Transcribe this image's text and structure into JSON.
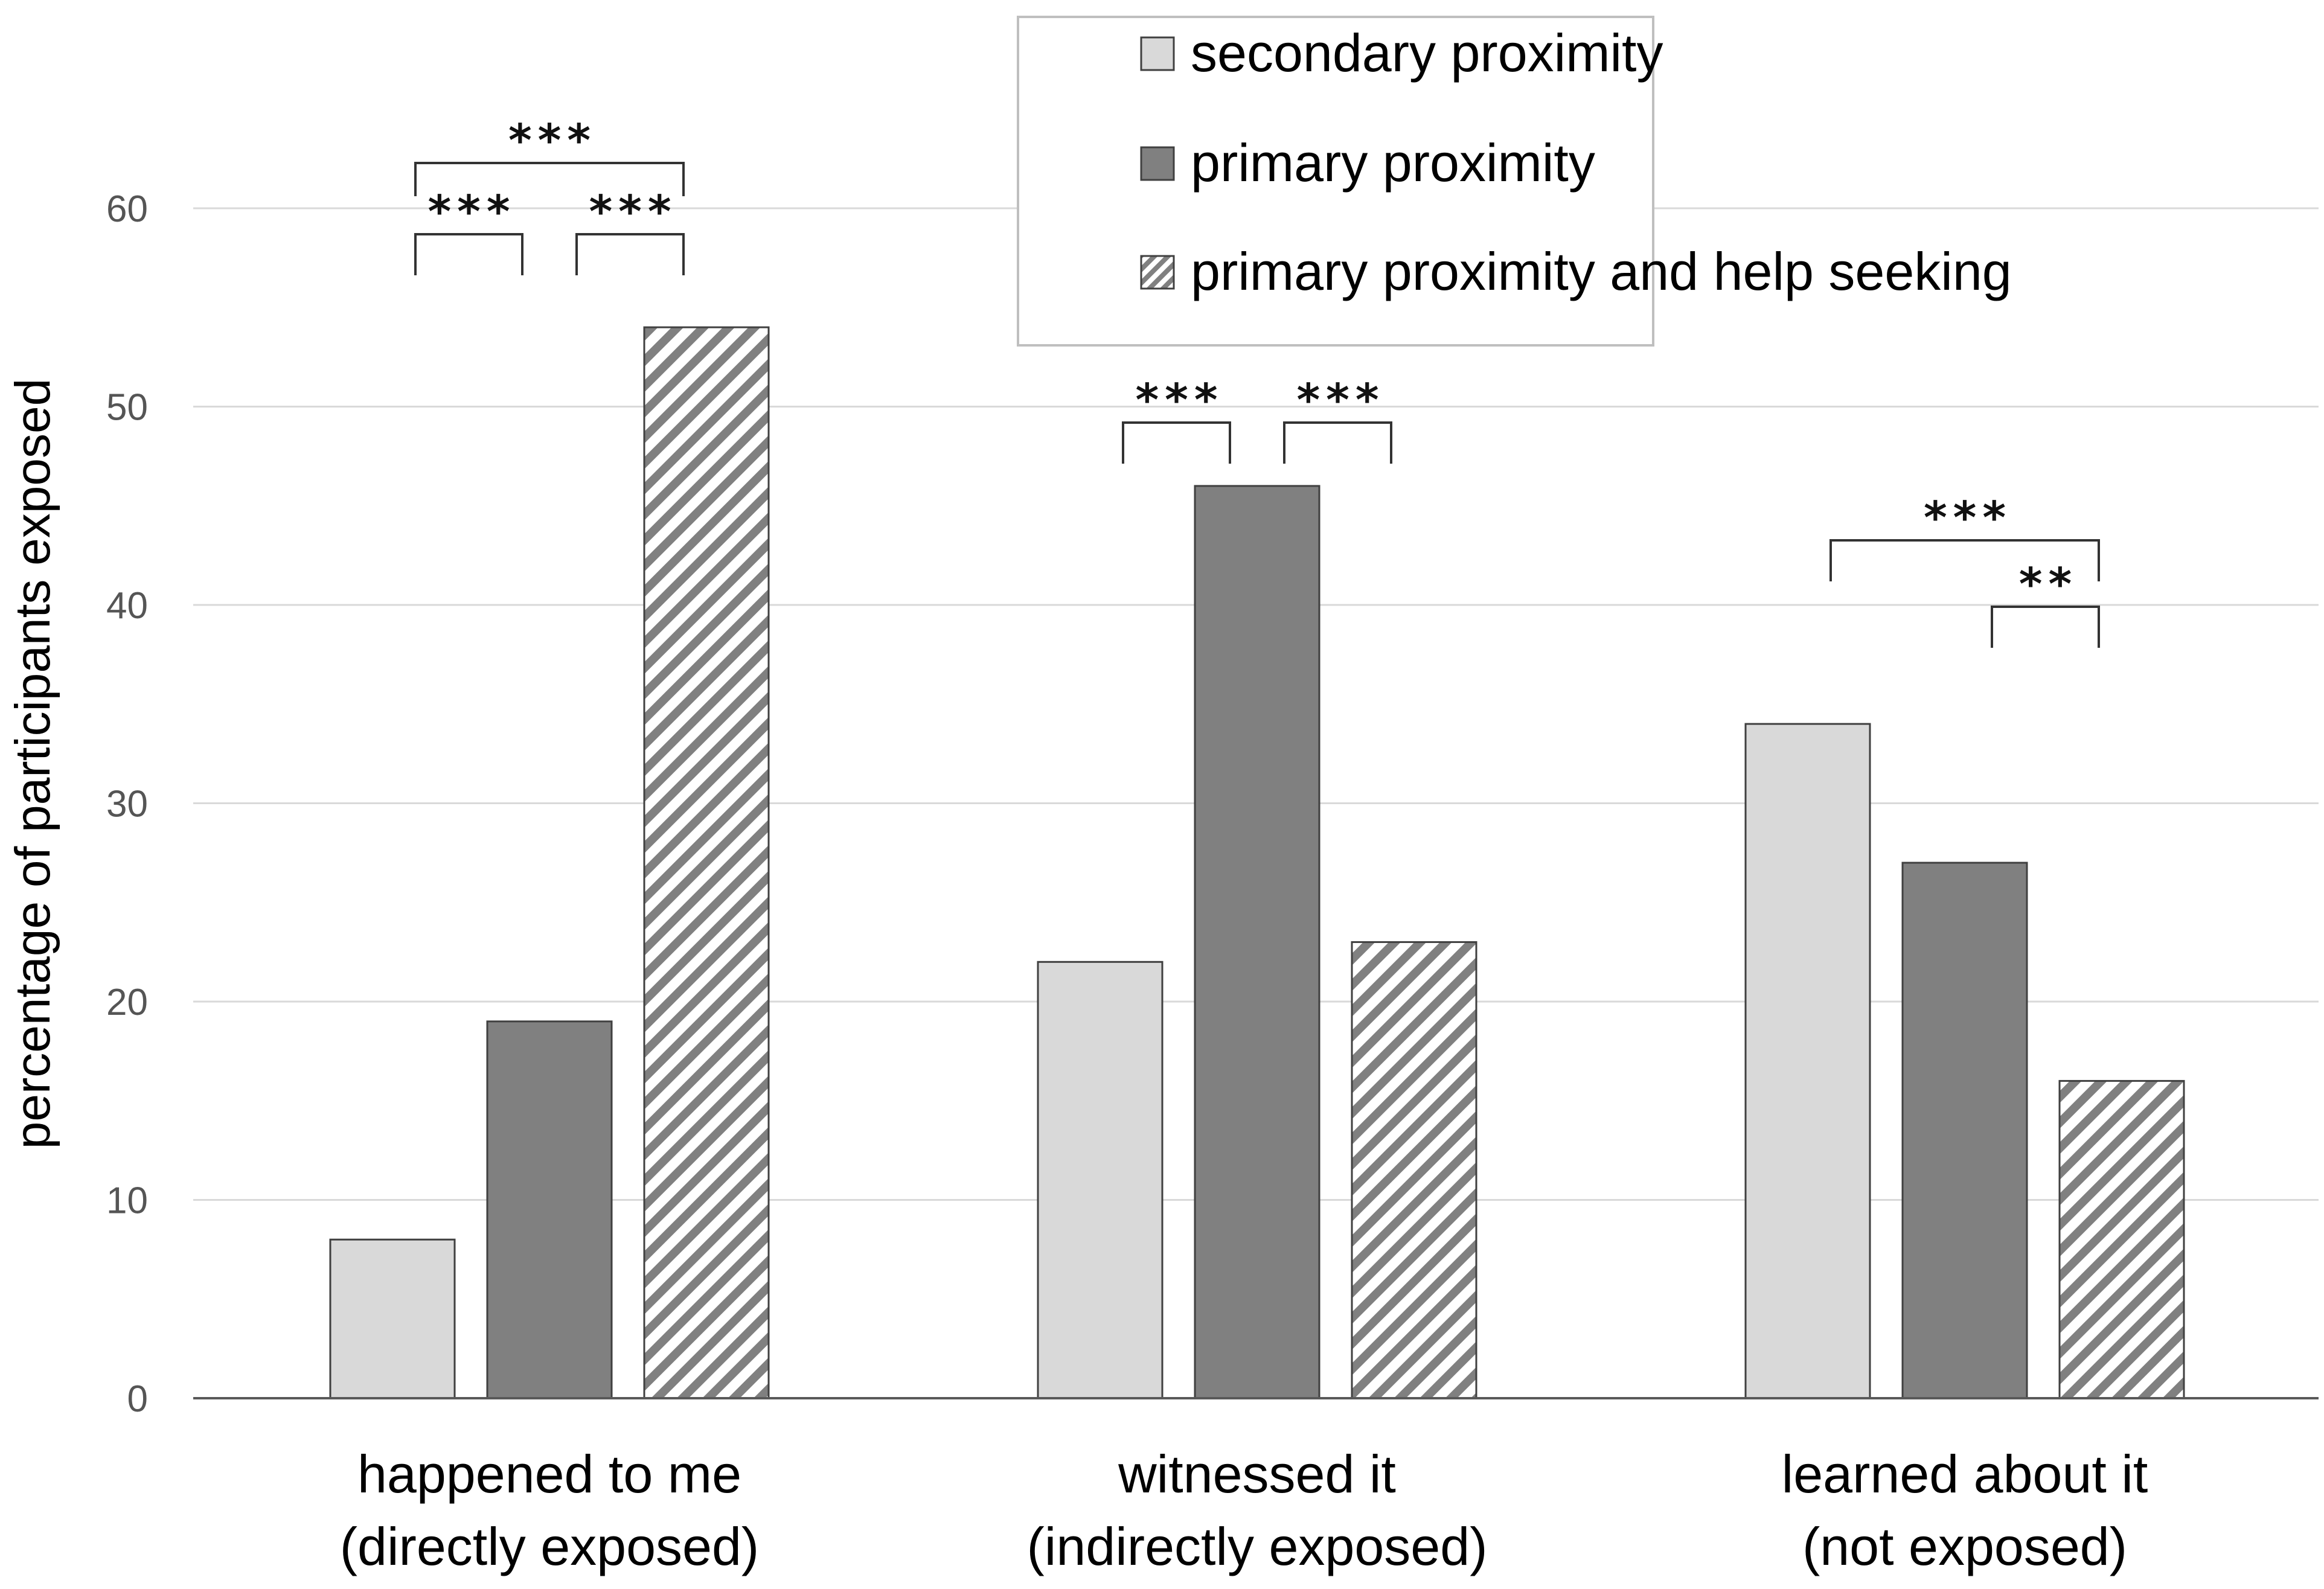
{
  "chart_data": {
    "type": "bar",
    "title": "",
    "xlabel": "",
    "ylabel": "percentage of participants exposed",
    "ylim": [
      0,
      60
    ],
    "yticks": [
      0,
      10,
      20,
      30,
      40,
      50,
      60
    ],
    "grid": true,
    "legend_position": "top-right",
    "categories": [
      {
        "line1": "happened to me",
        "line2": "(directly exposed)"
      },
      {
        "line1": "witnessed it",
        "line2": "(indirectly exposed)"
      },
      {
        "line1": "learned about it",
        "line2": "(not exposed)"
      }
    ],
    "series": [
      {
        "name": "secondary proximity",
        "values": [
          8,
          22,
          34
        ],
        "fill": "#d9d9d9",
        "pattern": "solid"
      },
      {
        "name": "primary proximity",
        "values": [
          19,
          46,
          27
        ],
        "fill": "#808080",
        "pattern": "solid"
      },
      {
        "name": "primary proximity and help seeking",
        "values": [
          54,
          23,
          16
        ],
        "fill": "#808080",
        "pattern": "hatch"
      }
    ],
    "significance": [
      {
        "category": 0,
        "from": 0,
        "to": 1,
        "label": "***",
        "level": 1
      },
      {
        "category": 0,
        "from": 1,
        "to": 2,
        "label": "***",
        "level": 1
      },
      {
        "category": 0,
        "from": 0,
        "to": 2,
        "label": "***",
        "level": 2
      },
      {
        "category": 1,
        "from": 0,
        "to": 1,
        "label": "***",
        "level": 1
      },
      {
        "category": 1,
        "from": 1,
        "to": 2,
        "label": "***",
        "level": 1
      },
      {
        "category": 2,
        "from": 1,
        "to": 2,
        "label": "**",
        "level": 1
      },
      {
        "category": 2,
        "from": 0,
        "to": 2,
        "label": "***",
        "level": 2
      }
    ]
  }
}
